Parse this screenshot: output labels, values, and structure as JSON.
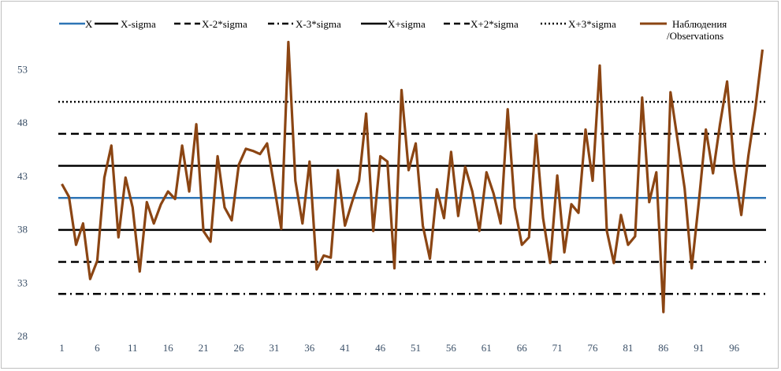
{
  "chart_data": {
    "type": "line",
    "title": "",
    "xlabel": "",
    "ylabel": "",
    "ylim": [
      28,
      56
    ],
    "y_ticks": [
      "28",
      "33",
      "38",
      "43",
      "48",
      "53"
    ],
    "y_tick_values": [
      28,
      33,
      38,
      43,
      48,
      53
    ],
    "x_ticks": [
      "1",
      "6",
      "11",
      "16",
      "21",
      "26",
      "31",
      "36",
      "41",
      "46",
      "51",
      "56",
      "61",
      "66",
      "71",
      "76",
      "81",
      "86",
      "91",
      "96"
    ],
    "x_tick_values": [
      1,
      6,
      11,
      16,
      21,
      26,
      31,
      36,
      41,
      46,
      51,
      56,
      61,
      66,
      71,
      76,
      81,
      86,
      91,
      96
    ],
    "xlim": [
      0.5,
      100.5
    ],
    "grid": false,
    "legend_position": "top",
    "reference_lines": [
      {
        "name": "X",
        "value": 40.9,
        "style": "solid",
        "color": "#2e75b6"
      },
      {
        "name": "X-sigma",
        "value": 37.9,
        "style": "solid",
        "color": "#000000"
      },
      {
        "name": "X-2*sigma",
        "value": 34.9,
        "style": "dash",
        "color": "#000000"
      },
      {
        "name": "X-3*sigma",
        "value": 31.9,
        "style": "dashdot",
        "color": "#000000"
      },
      {
        "name": "X+sigma",
        "value": 43.9,
        "style": "solid",
        "color": "#000000"
      },
      {
        "name": "X+2*sigma",
        "value": 46.9,
        "style": "dash",
        "color": "#000000"
      },
      {
        "name": "X+3*sigma",
        "value": 49.9,
        "style": "dot",
        "color": "#000000"
      }
    ],
    "series": [
      {
        "name": "Наблюдения /Observations",
        "name_line1": "Наблюдения",
        "name_line2": "/Observations",
        "color": "#8b4513",
        "x": [
          1,
          2,
          3,
          4,
          5,
          6,
          7,
          8,
          9,
          10,
          11,
          12,
          13,
          14,
          15,
          16,
          17,
          18,
          19,
          20,
          21,
          22,
          23,
          24,
          25,
          26,
          27,
          28,
          29,
          30,
          31,
          32,
          33,
          34,
          35,
          36,
          37,
          38,
          39,
          40,
          41,
          42,
          43,
          44,
          45,
          46,
          47,
          48,
          49,
          50,
          51,
          52,
          53,
          54,
          55,
          56,
          57,
          58,
          59,
          60,
          61,
          62,
          63,
          64,
          65,
          66,
          67,
          68,
          69,
          70,
          71,
          72,
          73,
          74,
          75,
          76,
          77,
          78,
          79,
          80,
          81,
          82,
          83,
          84,
          85,
          86,
          87,
          88,
          89,
          90,
          91,
          92,
          93,
          94,
          95,
          96,
          97,
          98,
          99,
          100
        ],
        "values": [
          42.2,
          41.0,
          36.5,
          38.5,
          33.3,
          35.0,
          42.8,
          45.8,
          37.2,
          42.8,
          40.0,
          34.0,
          40.5,
          38.5,
          40.3,
          41.5,
          40.8,
          45.8,
          41.5,
          47.8,
          37.8,
          36.8,
          44.8,
          40.0,
          38.8,
          44.0,
          45.5,
          45.3,
          45.0,
          46.0,
          42.0,
          38.0,
          55.5,
          42.5,
          38.5,
          44.3,
          34.2,
          35.5,
          35.3,
          43.5,
          38.3,
          40.5,
          42.5,
          48.8,
          37.8,
          44.8,
          44.3,
          34.3,
          51.0,
          43.5,
          46.0,
          38.3,
          35.2,
          41.7,
          39.0,
          45.2,
          39.2,
          43.8,
          41.5,
          37.8,
          43.3,
          41.3,
          38.5,
          49.2,
          40.0,
          36.5,
          37.2,
          46.8,
          39.0,
          34.8,
          43.0,
          35.8,
          40.3,
          39.5,
          47.3,
          42.5,
          53.3,
          37.8,
          34.8,
          39.3,
          36.5,
          37.3,
          50.3,
          40.5,
          43.3,
          30.2,
          50.8,
          46.3,
          41.8,
          34.3,
          40.5,
          47.3,
          43.2,
          47.8,
          51.8,
          43.8,
          39.3,
          44.8,
          49.3,
          54.8
        ]
      }
    ]
  }
}
